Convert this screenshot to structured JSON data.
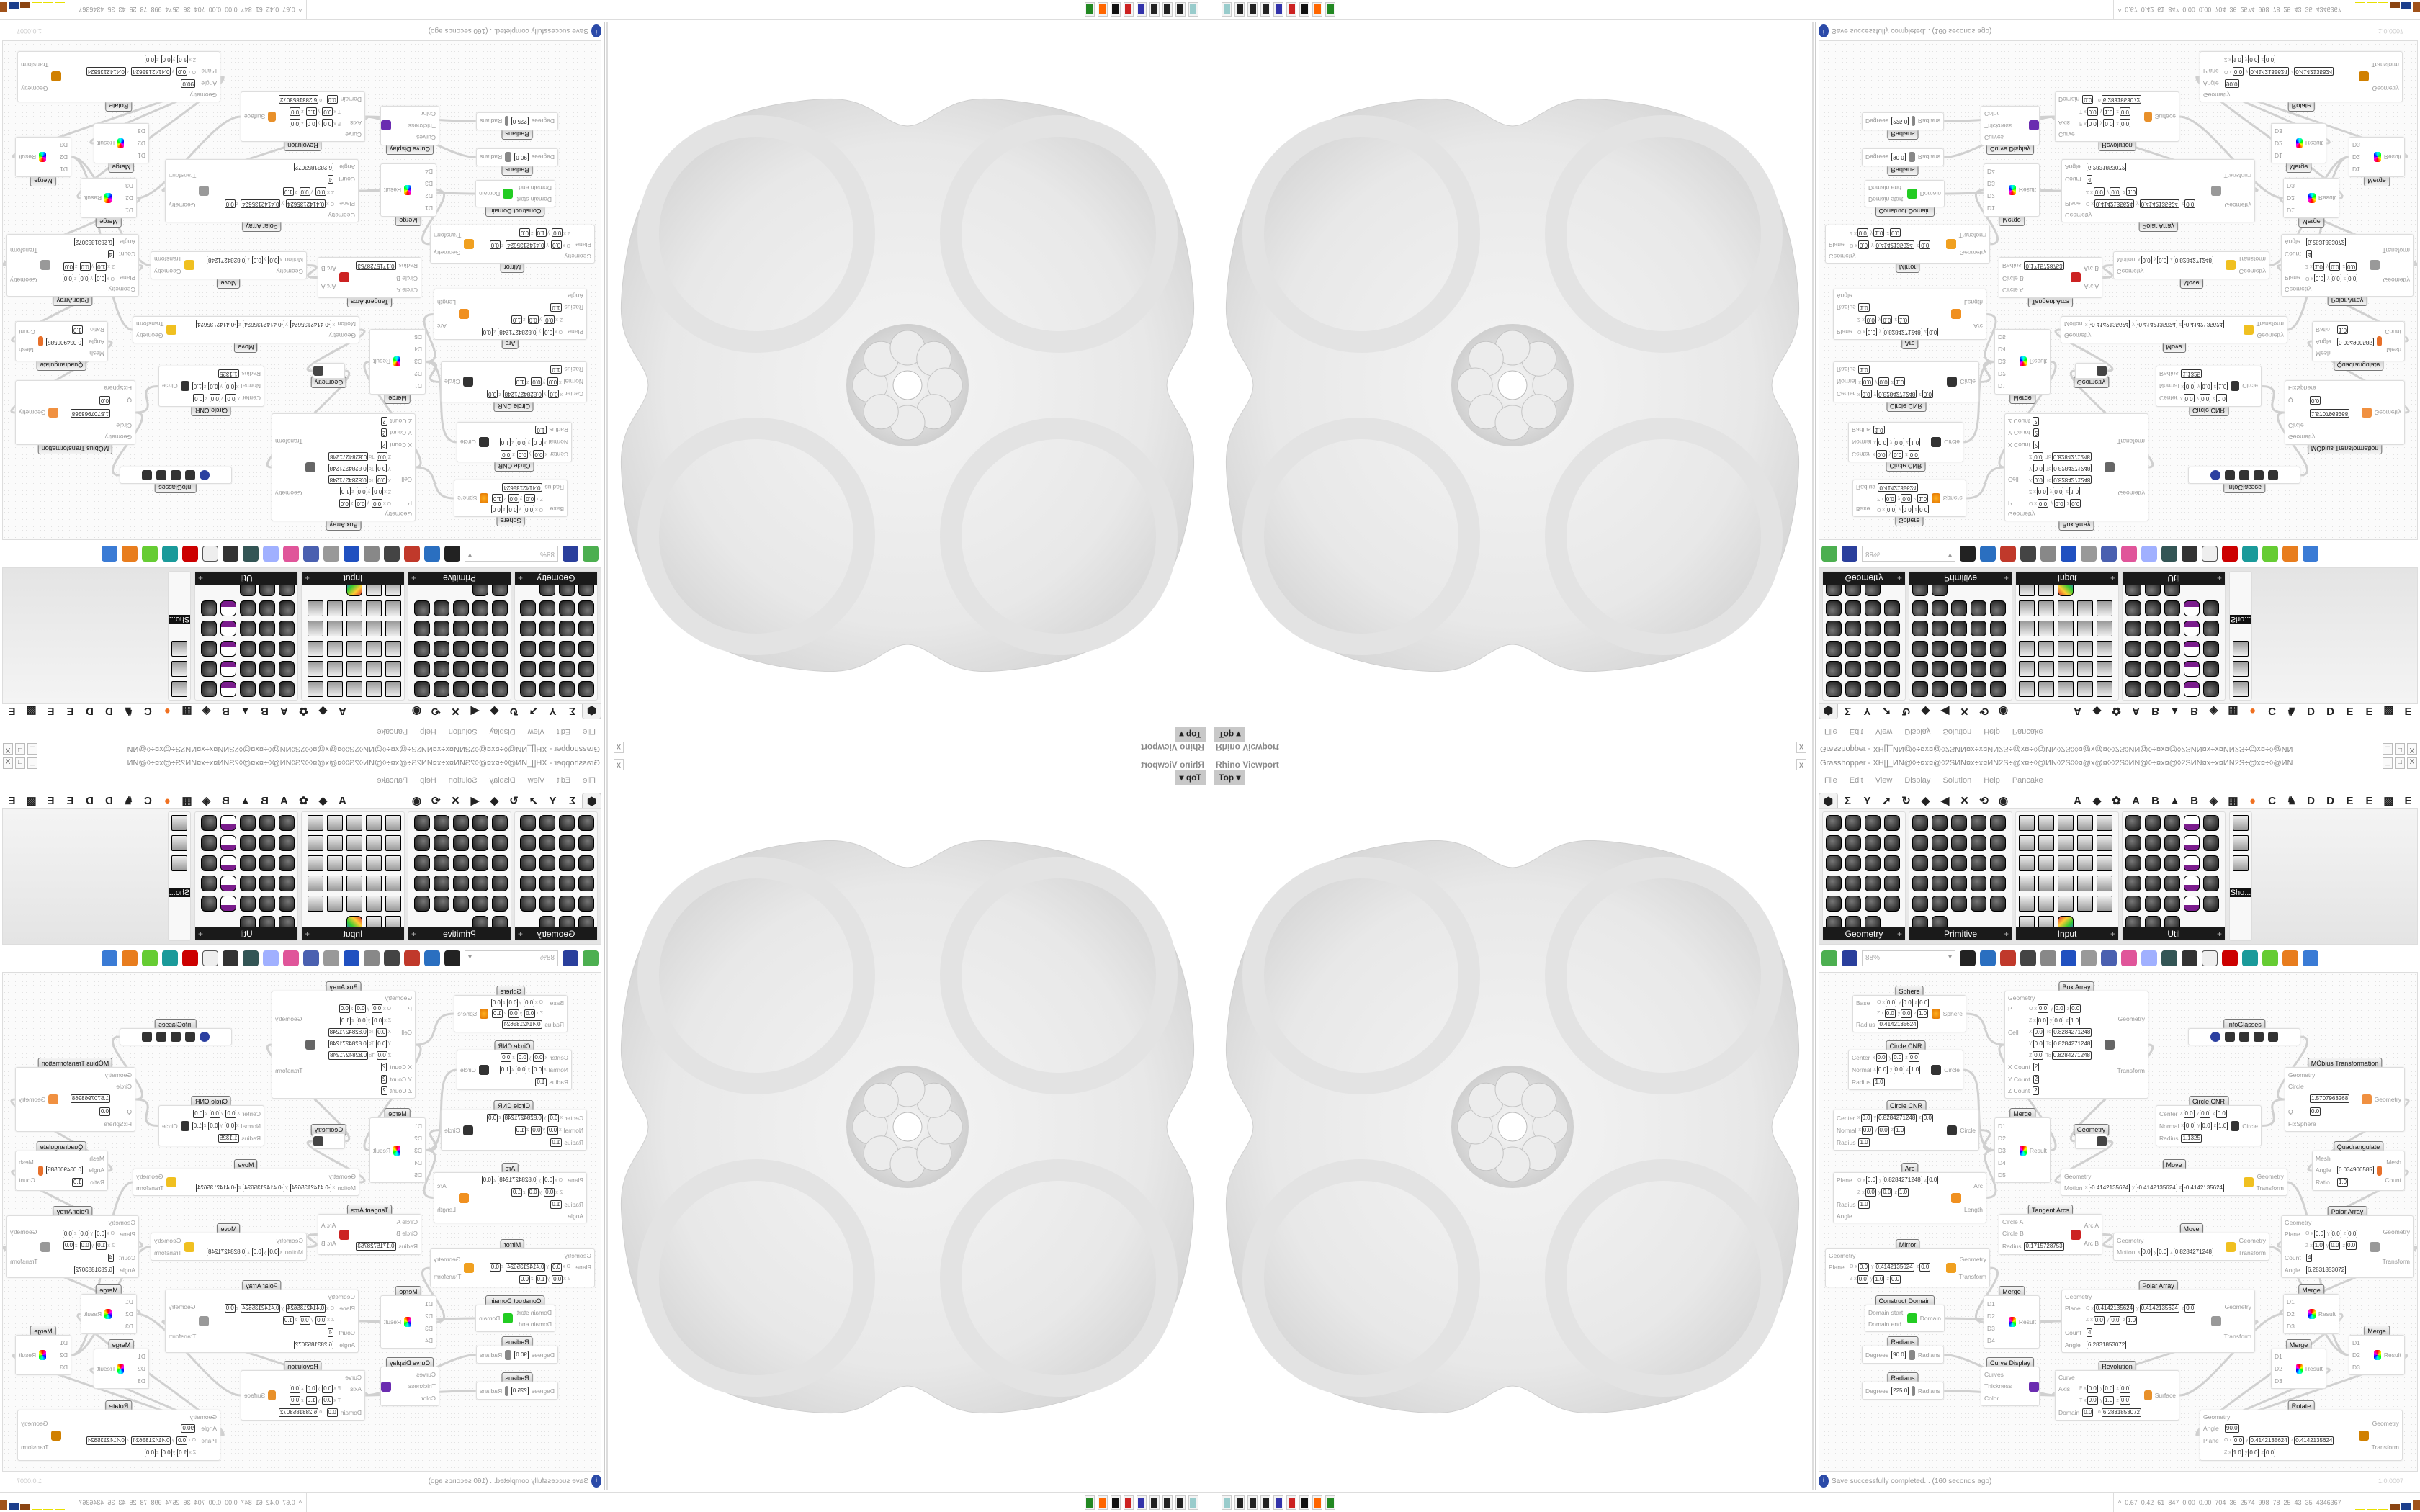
{
  "viewport": {
    "title": "Rhino Viewport",
    "view": "Top",
    "close": "x"
  },
  "window": {
    "title": "Grasshopper - XH[]_ИN@◊÷¤x¤@◊2SИN¤x÷x¤ИN2S÷@x¤÷◊@ИN◊2S◊◊¤@x@¤◊◊2S◊ИN@◊÷¤x¤@◊2SИN¤x÷x¤ИN2S÷@x¤÷◊@ИN",
    "controls": [
      "_",
      "□",
      "X"
    ]
  },
  "menu": [
    "File",
    "Edit",
    "View",
    "Display",
    "Solution",
    "Help",
    "Pancake"
  ],
  "tabs": {
    "icons": [
      "params-tab-icon",
      "maths-tab-icon",
      "sets-tab-icon",
      "vector-tab-icon",
      "curve-tab-icon",
      "surface-tab-icon",
      "mesh-tab-icon",
      "intersect-tab-icon",
      "transform-tab-icon",
      "display-tab-icon"
    ],
    "letters": [
      "A",
      "◆",
      "✿",
      "A",
      "B",
      "▲",
      "B",
      "◈",
      "▦",
      "●",
      "C",
      "♞",
      "D",
      "D",
      "E",
      "E",
      "▩",
      "E"
    ]
  },
  "panels": [
    {
      "label": "Geometry",
      "icons": 23
    },
    {
      "label": "Primitive",
      "icons": 27
    },
    {
      "label": "Input",
      "icons": 28
    },
    {
      "label": "Util",
      "icons": 28
    },
    {
      "label": "Sho...",
      "icons": 3
    }
  ],
  "toolbar": {
    "zoom": "88%",
    "icons": [
      "new-document-icon",
      "save-icon",
      "zoom-extents-icon",
      "preview-eye-icon",
      "sketch-icon",
      "bake-icon",
      "email-icon",
      "gha-icon",
      "image-icon",
      "search-icon",
      "package-icon",
      "bulb-icon",
      "wires-icon",
      "mesh-preview-icon",
      "wire-display-icon",
      "shaded-preview-icon",
      "teal-icon",
      "green-icon",
      "sphere-icon",
      "blue-sphere-icon"
    ]
  },
  "components": [
    {
      "title": "Sphere",
      "rows": [
        {
          "label": "Base",
          "fields": [
            [
              "O x",
              "0.0"
            ],
            [
              "y",
              "0.0"
            ],
            [
              "z",
              "0.0"
            ]
          ]
        },
        {
          "label": "",
          "fields": [
            [
              "Z x",
              "0.0"
            ],
            [
              "y",
              "0.0"
            ],
            [
              "z",
              "1.0"
            ]
          ]
        },
        {
          "label": "Radius",
          "fields": [
            [
              "",
              "0.4142135624"
            ]
          ]
        }
      ],
      "outputs": [
        "Sphere"
      ],
      "icon": "sphere-icon"
    },
    {
      "title": "Box Array",
      "rows": [
        {
          "label": "Geometry",
          "fields": []
        },
        {
          "label": "P",
          "fields": [
            [
              "O x",
              "0.0"
            ],
            [
              "y",
              "0.0"
            ],
            [
              "z",
              "0.0"
            ]
          ]
        },
        {
          "label": "",
          "fields": [
            [
              "Z x",
              "0.0"
            ],
            [
              "y",
              "0.0"
            ],
            [
              "z",
              "1.0"
            ]
          ]
        },
        {
          "label": "Cell",
          "fields": [
            [
              "X",
              "0.0"
            ],
            [
              "To",
              "0.8284271248"
            ]
          ]
        },
        {
          "label": "",
          "fields": [
            [
              "Y",
              "0.0"
            ],
            [
              "To",
              "0.8284271248"
            ]
          ]
        },
        {
          "label": "",
          "fields": [
            [
              "Z",
              "0.0"
            ],
            [
              "To",
              "0.8284271248"
            ]
          ]
        },
        {
          "label": "X Count",
          "fields": [
            [
              "",
              "2"
            ]
          ]
        },
        {
          "label": "Y Count",
          "fields": [
            [
              "",
              "2"
            ]
          ]
        },
        {
          "label": "Z Count",
          "fields": [
            [
              "",
              "2"
            ]
          ]
        }
      ],
      "outputs": [
        "Geometry",
        "Transform"
      ],
      "icon": "box-array-icon"
    },
    {
      "title": "InfoGlasses",
      "rows": [],
      "outputs": [],
      "icon": "infoglasses-icon"
    },
    {
      "title": "Circle CNR",
      "rows": [
        {
          "label": "Center",
          "fields": [
            [
              "x",
              "0.0"
            ],
            [
              "y",
              "0.0"
            ],
            [
              "z",
              "0.0"
            ]
          ]
        },
        {
          "label": "Normal",
          "fields": [
            [
              "x",
              "0.0"
            ],
            [
              "y",
              "0.0"
            ],
            [
              "z",
              "1.0"
            ]
          ]
        },
        {
          "label": "Radius",
          "fields": [
            [
              "",
              "1.0"
            ]
          ]
        }
      ],
      "outputs": [
        "Circle"
      ],
      "icon": "circle-icon"
    },
    {
      "title": "Circle CNR",
      "rows": [
        {
          "label": "Center",
          "fields": [
            [
              "x",
              "0.0"
            ],
            [
              "y",
              "0.8284271248"
            ],
            [
              "z",
              "0.0"
            ]
          ]
        },
        {
          "label": "Normal",
          "fields": [
            [
              "x",
              "0.0"
            ],
            [
              "y",
              "0.0"
            ],
            [
              "z",
              "1.0"
            ]
          ]
        },
        {
          "label": "Radius",
          "fields": [
            [
              "",
              "1.0"
            ]
          ]
        }
      ],
      "outputs": [
        "Circle"
      ],
      "icon": "circle-icon"
    },
    {
      "title": "Merge",
      "rows": [
        {
          "label": "D1",
          "fields": []
        },
        {
          "label": "D2",
          "fields": []
        },
        {
          "label": "D3",
          "fields": []
        },
        {
          "label": "D4",
          "fields": []
        },
        {
          "label": "D5",
          "fields": []
        }
      ],
      "outputs": [
        "Result"
      ],
      "icon": "merge-icon"
    },
    {
      "title": "Geometry",
      "rows": [],
      "outputs": [],
      "icon": "geometry-param-icon"
    },
    {
      "title": "Circle CNR",
      "rows": [
        {
          "label": "Center",
          "fields": [
            [
              "x",
              "0.0"
            ],
            [
              "y",
              "0.0"
            ],
            [
              "z",
              "0.0"
            ]
          ]
        },
        {
          "label": "Normal",
          "fields": [
            [
              "x",
              "0.0"
            ],
            [
              "y",
              "0.0"
            ],
            [
              "z",
              "1.0"
            ]
          ]
        },
        {
          "label": "Radius",
          "fields": [
            [
              "",
              "1.1325"
            ]
          ]
        }
      ],
      "outputs": [
        "Circle"
      ],
      "icon": "circle-icon"
    },
    {
      "title": "MÖbius Transformation",
      "rows": [
        {
          "label": "Geometry",
          "fields": []
        },
        {
          "label": "Circle",
          "fields": []
        },
        {
          "label": "T",
          "fields": [
            [
              "",
              "1.5707963268"
            ]
          ]
        },
        {
          "label": "Q",
          "fields": [
            [
              "",
              "0.0"
            ]
          ]
        },
        {
          "label": "FixSphere",
          "fields": []
        }
      ],
      "outputs": [
        "Geometry"
      ],
      "icon": "mobius-icon"
    },
    {
      "title": "Quadrangulate",
      "rows": [
        {
          "label": "Mesh",
          "fields": []
        },
        {
          "label": "Angle",
          "fields": [
            [
              "",
              "0.034906585"
            ]
          ]
        },
        {
          "label": "Ratio",
          "fields": [
            [
              "",
              "1.0"
            ]
          ]
        }
      ],
      "outputs": [
        "Mesh",
        "Count"
      ],
      "icon": "quadrangulate-icon"
    },
    {
      "title": "Move",
      "rows": [
        {
          "label": "Geometry",
          "fields": []
        },
        {
          "label": "Motion",
          "fields": [
            [
              "x",
              "-0.4142135624"
            ],
            [
              "y",
              "-0.4142135624"
            ],
            [
              "z",
              "-0.4142135624"
            ]
          ]
        }
      ],
      "outputs": [
        "Geometry",
        "Transform"
      ],
      "icon": "move-icon"
    },
    {
      "title": "Arc",
      "rows": [
        {
          "label": "Plane",
          "fields": [
            [
              "O x",
              "0.0"
            ],
            [
              "y",
              "0.8284271248"
            ],
            [
              "z",
              "0.0"
            ]
          ]
        },
        {
          "label": "",
          "fields": [
            [
              "Z x",
              "0.0"
            ],
            [
              "y",
              "0.0"
            ],
            [
              "z",
              "1.0"
            ]
          ]
        },
        {
          "label": "Radius",
          "fields": [
            [
              "",
              "1.0"
            ]
          ]
        },
        {
          "label": "Angle",
          "fields": []
        }
      ],
      "outputs": [
        "Arc",
        "Length"
      ],
      "icon": "arc-icon"
    },
    {
      "title": "Tangent Arcs",
      "rows": [
        {
          "label": "Circle A",
          "fields": []
        },
        {
          "label": "Circle B",
          "fields": []
        },
        {
          "label": "Radius",
          "fields": [
            [
              "",
              "0.1715728753"
            ]
          ]
        }
      ],
      "outputs": [
        "Arc A",
        "Arc B"
      ],
      "icon": "tangent-arcs-icon"
    },
    {
      "title": "Move",
      "rows": [
        {
          "label": "Geometry",
          "fields": []
        },
        {
          "label": "Motion",
          "fields": [
            [
              "x",
              "0.0"
            ],
            [
              "y",
              "0.0"
            ],
            [
              "z",
              "0.8284271248"
            ]
          ]
        }
      ],
      "outputs": [
        "Geometry",
        "Transform"
      ],
      "icon": "move-icon"
    },
    {
      "title": "Polar Array",
      "rows": [
        {
          "label": "Geometry",
          "fields": []
        },
        {
          "label": "Plane",
          "fields": [
            [
              "O x",
              "0.0"
            ],
            [
              "y",
              "0.0"
            ],
            [
              "z",
              "0.0"
            ]
          ]
        },
        {
          "label": "",
          "fields": [
            [
              "Z x",
              "1.0"
            ],
            [
              "y",
              "0.0"
            ],
            [
              "z",
              "0.0"
            ]
          ]
        },
        {
          "label": "Count",
          "fields": [
            [
              "",
              "4"
            ]
          ]
        },
        {
          "label": "Angle",
          "fields": [
            [
              "",
              "6.2831853072"
            ]
          ]
        }
      ],
      "outputs": [
        "Geometry",
        "Transform"
      ],
      "icon": "polar-array-icon"
    },
    {
      "title": "Mirror",
      "rows": [
        {
          "label": "Geometry",
          "fields": []
        },
        {
          "label": "Plane",
          "fields": [
            [
              "O x",
              "0.0"
            ],
            [
              "y",
              "0.4142135624"
            ],
            [
              "z",
              "0.0"
            ]
          ]
        },
        {
          "label": "",
          "fields": [
            [
              "Z x",
              "0.0"
            ],
            [
              "y",
              "1.0"
            ],
            [
              "z",
              "0.0"
            ]
          ]
        }
      ],
      "outputs": [
        "Geometry",
        "Transform"
      ],
      "icon": "mirror-icon"
    },
    {
      "title": "Construct Domain",
      "rows": [
        {
          "label": "Domain start",
          "fields": []
        },
        {
          "label": "Domain end",
          "fields": []
        }
      ],
      "outputs": [
        "Domain"
      ],
      "icon": "domain-icon"
    },
    {
      "title": "Radians",
      "rows": [
        {
          "label": "Degrees",
          "fields": [
            [
              "",
              "90.0"
            ]
          ]
        }
      ],
      "outputs": [
        "Radians"
      ],
      "icon": "radians-icon"
    },
    {
      "title": "Radians",
      "rows": [
        {
          "label": "Degrees",
          "fields": [
            [
              "",
              "225.0"
            ]
          ]
        }
      ],
      "outputs": [
        "Radians"
      ],
      "icon": "radians-icon"
    },
    {
      "title": "Merge",
      "rows": [
        {
          "label": "D1",
          "fields": []
        },
        {
          "label": "D2",
          "fields": []
        },
        {
          "label": "D3",
          "fields": []
        },
        {
          "label": "D4",
          "fields": []
        }
      ],
      "outputs": [
        "Result"
      ],
      "icon": "merge-icon"
    },
    {
      "title": "Curve Display",
      "rows": [
        {
          "label": "Curves",
          "fields": []
        },
        {
          "label": "Thickness",
          "fields": []
        },
        {
          "label": "Color",
          "fields": []
        }
      ],
      "outputs": [],
      "icon": "curve-display-icon"
    },
    {
      "title": "Polar Array",
      "rows": [
        {
          "label": "Geometry",
          "fields": []
        },
        {
          "label": "Plane",
          "fields": [
            [
              "O x",
              "0.4142135624"
            ],
            [
              "y",
              "0.4142135624"
            ],
            [
              "z",
              "0.0"
            ]
          ]
        },
        {
          "label": "",
          "fields": [
            [
              "Z x",
              "0.0"
            ],
            [
              "y",
              "0.0"
            ],
            [
              "z",
              "1.0"
            ]
          ]
        },
        {
          "label": "Count",
          "fields": [
            [
              "",
              "4"
            ]
          ]
        },
        {
          "label": "Angle",
          "fields": [
            [
              "",
              "6.2831853072"
            ]
          ]
        }
      ],
      "outputs": [
        "Geometry",
        "Transform"
      ],
      "icon": "polar-array-icon"
    },
    {
      "title": "Revolution",
      "rows": [
        {
          "label": "Curve",
          "fields": []
        },
        {
          "label": "Axis",
          "fields": [
            [
              "F x",
              "0.0"
            ],
            [
              "y",
              "0.0"
            ],
            [
              "z",
              "0.0"
            ]
          ]
        },
        {
          "label": "",
          "fields": [
            [
              "T x",
              "0.0"
            ],
            [
              "y",
              "1.0"
            ],
            [
              "z",
              "0.0"
            ]
          ]
        },
        {
          "label": "Domain",
          "fields": [
            [
              "",
              "0.0"
            ],
            [
              "To",
              "6.2831853072"
            ]
          ]
        }
      ],
      "outputs": [
        "Surface"
      ],
      "icon": "revolution-icon"
    },
    {
      "title": "Merge",
      "rows": [
        {
          "label": "D1",
          "fields": []
        },
        {
          "label": "D2",
          "fields": []
        },
        {
          "label": "D3",
          "fields": []
        }
      ],
      "outputs": [
        "Result"
      ],
      "icon": "merge-icon"
    },
    {
      "title": "Merge",
      "rows": [
        {
          "label": "D1",
          "fields": []
        },
        {
          "label": "D2",
          "fields": []
        },
        {
          "label": "D3",
          "fields": []
        }
      ],
      "outputs": [
        "Result"
      ],
      "icon": "merge-icon"
    },
    {
      "title": "Merge",
      "rows": [
        {
          "label": "D1",
          "fields": []
        },
        {
          "label": "D2",
          "fields": []
        },
        {
          "label": "D3",
          "fields": []
        }
      ],
      "outputs": [
        "Result"
      ],
      "icon": "merge-icon"
    },
    {
      "title": "Rotate",
      "rows": [
        {
          "label": "Geometry",
          "fields": []
        },
        {
          "label": "Angle",
          "fields": [
            [
              "",
              "90.0"
            ]
          ]
        },
        {
          "label": "Plane",
          "fields": [
            [
              "O x",
              "0.0"
            ],
            [
              "y",
              "0.4142135624"
            ],
            [
              "z",
              "0.4142135624"
            ]
          ]
        },
        {
          "label": "",
          "fields": [
            [
              "Z x",
              "1.0"
            ],
            [
              "y",
              "0.0"
            ],
            [
              "z",
              "0.0"
            ]
          ]
        }
      ],
      "outputs": [
        "Geometry",
        "Transform"
      ],
      "icon": "rotate-icon"
    }
  ],
  "status": {
    "message": "Save successfully completed... (160 seconds ago)",
    "version": "1.0.0007"
  },
  "taskbar": {
    "apps": [
      "notepad-icon",
      "app-icon",
      "app-icon",
      "app-icon",
      "floppy-icon",
      "red-app-icon",
      "inkscape-icon",
      "firefox-icon",
      "terminal-icon"
    ],
    "stats": [
      "0.67",
      "0.42",
      "61",
      "847",
      "0.00",
      "0.00",
      "704",
      "36",
      "2574",
      "998",
      "78",
      "25",
      "43",
      "35",
      "4346367"
    ],
    "bar_colors": [
      "#e8e000",
      "#e8e000",
      "#e8e000",
      "#8b4513",
      "#1c3f8c",
      "#a0521a",
      "#2ea82e",
      "#8b1010"
    ]
  }
}
